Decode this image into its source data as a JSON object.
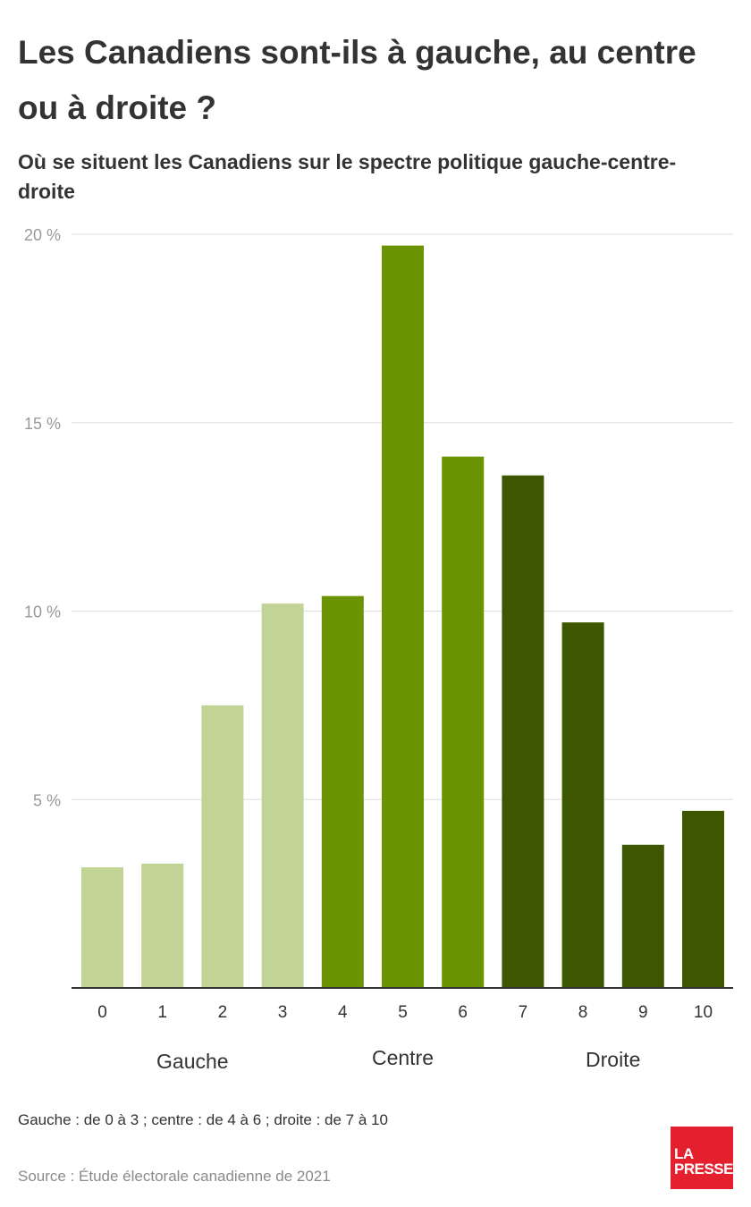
{
  "header": {
    "title": "Les Canadiens sont-ils à gauche, au centre ou à droite ?",
    "subtitle": "Où se situent les Canadiens sur le spectre politique gauche-centre-droite"
  },
  "chart_data": {
    "type": "bar",
    "categories": [
      "0",
      "1",
      "2",
      "3",
      "4",
      "5",
      "6",
      "7",
      "8",
      "9",
      "10"
    ],
    "values": [
      3.2,
      3.3,
      7.5,
      10.2,
      10.4,
      19.7,
      14.1,
      13.6,
      9.7,
      3.8,
      4.7
    ],
    "groups": [
      {
        "label": "Gauche",
        "range": [
          "0",
          "3"
        ],
        "color": "#c2d495"
      },
      {
        "label": "Centre",
        "range": [
          "4",
          "6"
        ],
        "color": "#6b9302"
      },
      {
        "label": "Droite",
        "range": [
          "7",
          "10"
        ],
        "color": "#3d5700"
      }
    ],
    "ylim": [
      0,
      20
    ],
    "yticks": [
      5,
      10,
      15,
      20
    ],
    "ytick_labels": [
      "5 %",
      "10 %",
      "15 %",
      "20 %"
    ],
    "grid": true,
    "xlabel": "",
    "ylabel": ""
  },
  "footer": {
    "note": "Gauche : de 0 à 3 ; centre : de 4 à 6 ; droite : de 7 à 10",
    "source": "Source : Étude électorale canadienne de 2021",
    "logo_line1": "LA",
    "logo_line2": "PRESSE"
  }
}
